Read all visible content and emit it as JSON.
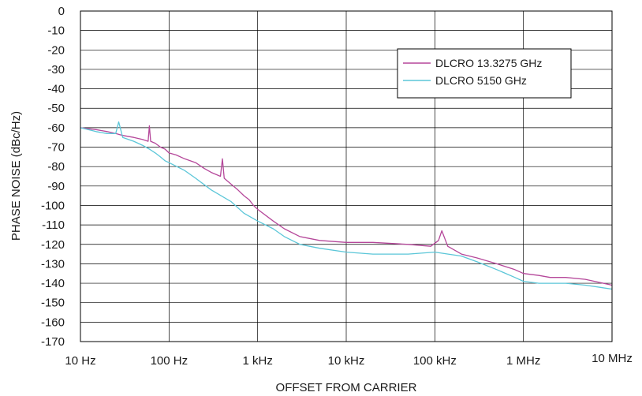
{
  "chart_data": {
    "type": "line",
    "title": "",
    "xlabel": "OFFSET FROM CARRIER",
    "ylabel": "PHASE NOISE (dBc/Hz)",
    "xscale": "log",
    "xlim": [
      10,
      10000000
    ],
    "ylim": [
      -170,
      0
    ],
    "grid": true,
    "legend_position": "top-right",
    "x_ticks": [
      {
        "value": 10,
        "label": "10 Hz"
      },
      {
        "value": 100,
        "label": "100 Hz"
      },
      {
        "value": 1000,
        "label": "1 kHz"
      },
      {
        "value": 10000,
        "label": "10 kHz"
      },
      {
        "value": 100000,
        "label": "100 kHz"
      },
      {
        "value": 1000000,
        "label": "1 MHz"
      },
      {
        "value": 10000000,
        "label": "10 MHz"
      }
    ],
    "y_ticks": [
      0,
      -10,
      -20,
      -30,
      -40,
      -50,
      -60,
      -70,
      -80,
      -90,
      -100,
      -110,
      -120,
      -130,
      -140,
      -150,
      -160,
      -170
    ],
    "series": [
      {
        "name": "DLCRO 13.3275 GHz",
        "color": "#b5479a",
        "x": [
          10,
          15,
          20,
          25,
          30,
          40,
          50,
          58,
          60,
          62,
          70,
          80,
          90,
          100,
          120,
          150,
          200,
          250,
          300,
          380,
          400,
          420,
          500,
          600,
          700,
          800,
          900,
          1000,
          1500,
          2000,
          3000,
          5000,
          10000,
          20000,
          50000,
          90000,
          110000,
          120000,
          140000,
          200000,
          300000,
          500000,
          800000,
          1000000,
          1500000,
          2000000,
          3000000,
          5000000,
          10000000
        ],
        "y": [
          -60,
          -61,
          -62,
          -63,
          -64,
          -65,
          -66,
          -67,
          -59,
          -67,
          -68,
          -70,
          -71,
          -73,
          -74,
          -76,
          -78,
          -81,
          -83,
          -85,
          -76,
          -86,
          -89,
          -92,
          -95,
          -97,
          -100,
          -102,
          -108,
          -112,
          -116,
          -118,
          -119,
          -119,
          -120,
          -121,
          -118,
          -113,
          -121,
          -125,
          -127,
          -130,
          -133,
          -135,
          -136,
          -137,
          -137,
          -138,
          -141
        ]
      },
      {
        "name": "DLCRO 5150 GHz",
        "color": "#5bc6d8",
        "x": [
          10,
          15,
          20,
          25,
          27,
          30,
          40,
          50,
          60,
          70,
          80,
          90,
          100,
          150,
          200,
          300,
          500,
          700,
          1000,
          1500,
          2000,
          3000,
          5000,
          10000,
          20000,
          50000,
          100000,
          200000,
          300000,
          500000,
          800000,
          1000000,
          1500000,
          2000000,
          3000000,
          5000000,
          10000000
        ],
        "y": [
          -60,
          -62,
          -63,
          -63,
          -57,
          -65,
          -67,
          -69,
          -71,
          -73,
          -75,
          -77,
          -78,
          -82,
          -86,
          -92,
          -98,
          -104,
          -108,
          -112,
          -116,
          -120,
          -122,
          -124,
          -125,
          -125,
          -124,
          -126,
          -129,
          -133,
          -137,
          -139,
          -140,
          -140,
          -140,
          -141,
          -143
        ]
      }
    ]
  }
}
